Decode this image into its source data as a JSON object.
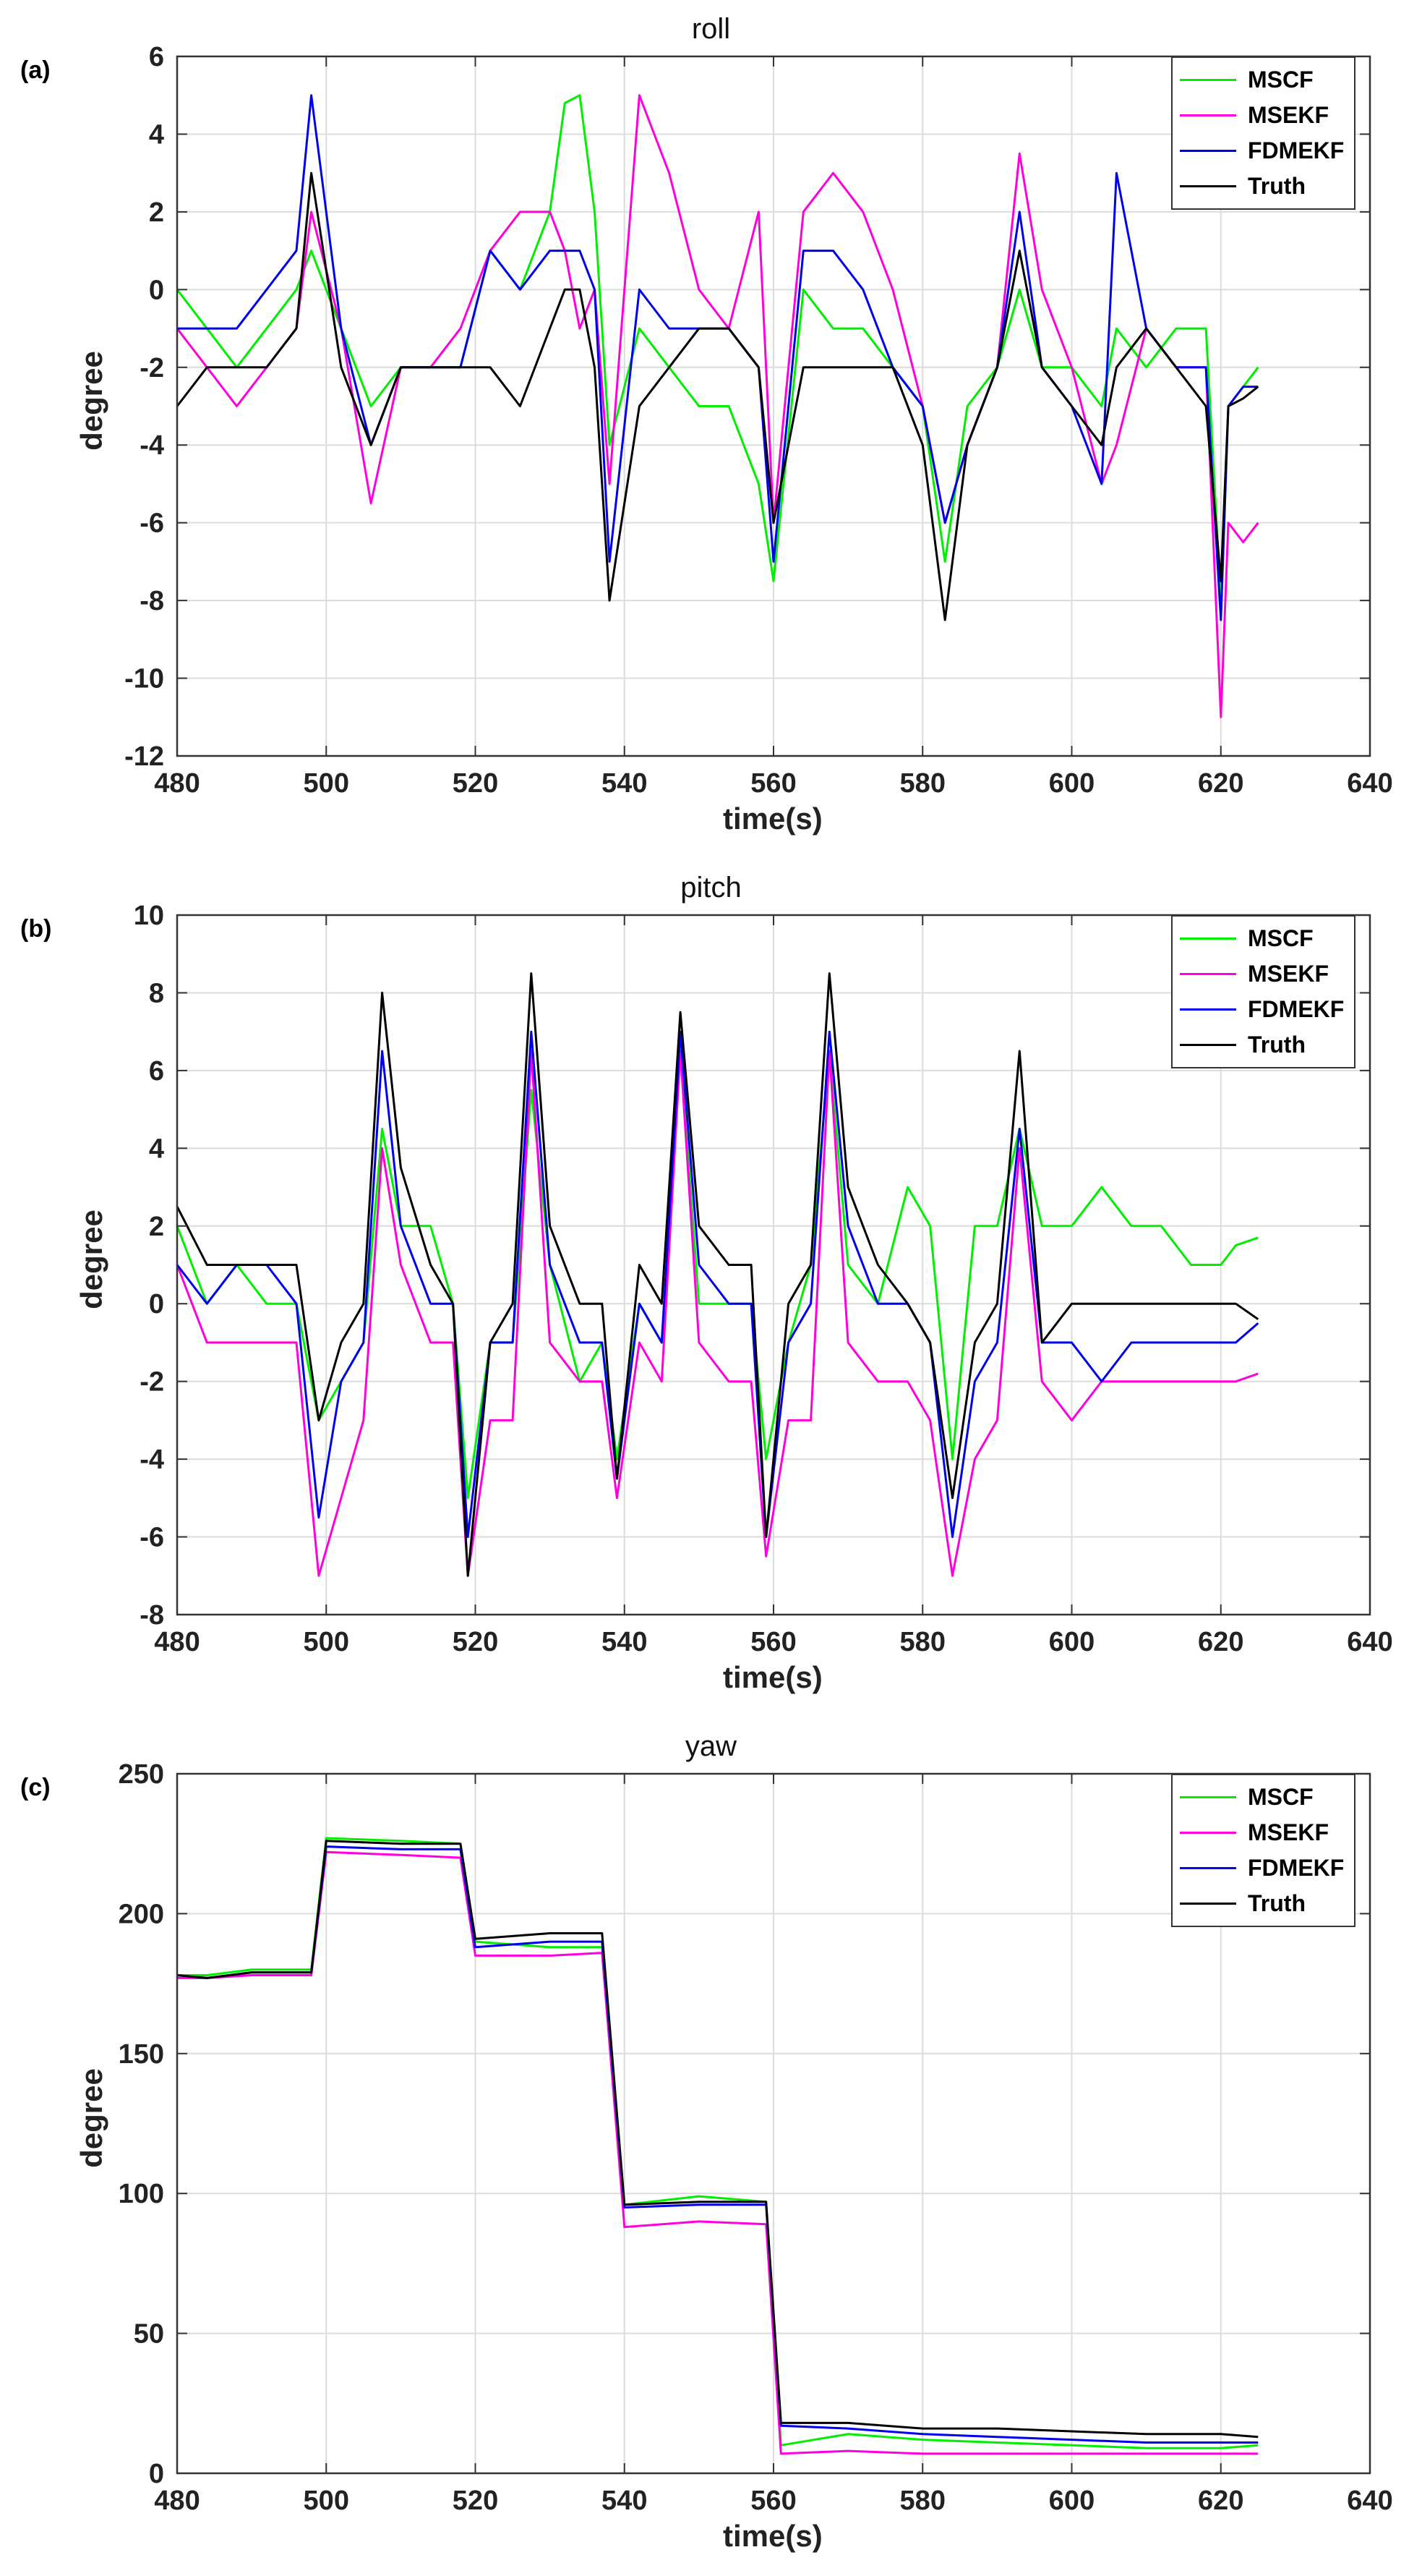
{
  "panel_a": {
    "label": "(a)",
    "chart_data": {
      "type": "line",
      "title": "roll",
      "xlabel": "time(s)",
      "ylabel": "degree",
      "xlim": [
        480,
        640
      ],
      "ylim": [
        -12,
        6
      ],
      "xticks": [
        480,
        500,
        520,
        540,
        560,
        580,
        600,
        620,
        640
      ],
      "yticks": [
        -12,
        -10,
        -8,
        -6,
        -4,
        -2,
        0,
        2,
        4,
        6
      ],
      "grid": true,
      "legend": "top-right",
      "x": [
        480,
        484,
        488,
        492,
        496,
        498,
        502,
        506,
        510,
        514,
        518,
        522,
        526,
        530,
        532,
        534,
        536,
        538,
        542,
        546,
        550,
        554,
        558,
        560,
        564,
        568,
        572,
        576,
        580,
        583,
        586,
        590,
        593,
        596,
        600,
        604,
        606,
        610,
        614,
        618,
        620,
        621,
        623,
        625
      ],
      "series": [
        {
          "name": "MSCF",
          "color": "#00ee00",
          "values": [
            0,
            -1,
            -2,
            -1,
            0,
            1,
            -1,
            -3,
            -2,
            -2,
            -2,
            1,
            0,
            2,
            4.8,
            5,
            2,
            -4,
            -1,
            -2,
            -3,
            -3,
            -5,
            -7.5,
            0,
            -1,
            -1,
            -2,
            -3,
            -7,
            -3,
            -2,
            0,
            -2,
            -2,
            -3,
            -1,
            -2,
            -1,
            -1,
            -8,
            -3,
            -2.5,
            -2
          ]
        },
        {
          "name": "MSEKF",
          "color": "#ff00dd",
          "values": [
            -1,
            -2,
            -3,
            -2,
            -1,
            2,
            -1,
            -5.5,
            -2,
            -2,
            -1,
            1,
            2,
            2,
            1,
            -1,
            0,
            -5,
            5,
            3,
            0,
            -1,
            2,
            -6,
            2,
            3,
            2,
            0,
            -3,
            -6,
            -4,
            -2,
            3.5,
            0,
            -2,
            -5,
            -4,
            -1,
            -2,
            -2,
            -11,
            -6,
            -6.5,
            -6
          ]
        },
        {
          "name": "FDMEKF",
          "color": "#0000ee",
          "values": [
            -1,
            -1,
            -1,
            0,
            1,
            5,
            -1,
            -4,
            -2,
            -2,
            -2,
            1,
            0,
            1,
            1,
            1,
            0,
            -7,
            0,
            -1,
            -1,
            -1,
            -2,
            -7,
            1,
            1,
            0,
            -2,
            -3,
            -6,
            -4,
            -2,
            2,
            -2,
            -3,
            -5,
            3,
            -1,
            -2,
            -2,
            -8.5,
            -3,
            -2.5,
            -2.5
          ]
        },
        {
          "name": "Truth",
          "color": "#000000",
          "values": [
            -3,
            -2,
            -2,
            -2,
            -1,
            3,
            -2,
            -4,
            -2,
            -2,
            -2,
            -2,
            -3,
            -1,
            0,
            0,
            -2,
            -8,
            -3,
            -2,
            -1,
            -1,
            -2,
            -6,
            -2,
            -2,
            -2,
            -2,
            -4,
            -8.5,
            -4,
            -2,
            1,
            -2,
            -3,
            -4,
            -2,
            -1,
            -2,
            -3,
            -7.5,
            -3,
            -2.8,
            -2.5
          ]
        }
      ]
    }
  },
  "panel_b": {
    "label": "(b)",
    "chart_data": {
      "type": "line",
      "title": "pitch",
      "xlabel": "time(s)",
      "ylabel": "degree",
      "xlim": [
        480,
        640
      ],
      "ylim": [
        -8,
        10
      ],
      "xticks": [
        480,
        500,
        520,
        540,
        560,
        580,
        600,
        620,
        640
      ],
      "yticks": [
        -8,
        -6,
        -4,
        -2,
        0,
        2,
        4,
        6,
        8,
        10
      ],
      "grid": true,
      "legend": "top-right",
      "x": [
        480,
        484,
        488,
        492,
        496,
        499,
        502,
        505,
        507.5,
        510,
        514,
        517,
        519,
        522,
        525,
        527.5,
        530,
        534,
        537,
        539,
        542,
        545,
        547.5,
        550,
        554,
        557,
        559,
        562,
        565,
        567.5,
        570,
        574,
        578,
        581,
        584,
        587,
        590,
        593,
        596,
        600,
        604,
        608,
        612,
        616,
        620,
        622,
        625
      ],
      "series": [
        {
          "name": "MSCF",
          "color": "#00ee00",
          "values": [
            2,
            0,
            1,
            0,
            0,
            -3,
            -2,
            -1,
            4.5,
            2,
            2,
            0,
            -5,
            -1,
            -1,
            5.5,
            1,
            -2,
            -1,
            -4,
            0,
            -1,
            6.5,
            0,
            0,
            0,
            -4,
            -1,
            1,
            6.5,
            1,
            0,
            3,
            2,
            -4,
            2,
            2,
            4.5,
            2,
            2,
            3,
            2,
            2,
            1,
            1,
            1.5,
            1.7
          ]
        },
        {
          "name": "MSEKF",
          "color": "#ff00dd",
          "values": [
            1,
            -1,
            -1,
            -1,
            -1,
            -7,
            -5,
            -3,
            4,
            1,
            -1,
            -1,
            -7,
            -3,
            -3,
            6.5,
            -1,
            -2,
            -2,
            -5,
            -1,
            -2,
            6.5,
            -1,
            -2,
            -2,
            -6.5,
            -3,
            -3,
            6.5,
            -1,
            -2,
            -2,
            -3,
            -7,
            -4,
            -3,
            4,
            -2,
            -3,
            -2,
            -2,
            -2,
            -2,
            -2,
            -2,
            -1.8
          ]
        },
        {
          "name": "FDMEKF",
          "color": "#0000ee",
          "values": [
            1,
            0,
            1,
            1,
            0,
            -5.5,
            -2,
            -1,
            6.5,
            2,
            0,
            0,
            -6,
            -1,
            -1,
            7,
            1,
            -1,
            -1,
            -4.5,
            0,
            -1,
            7,
            1,
            0,
            0,
            -6,
            -1,
            0,
            7,
            2,
            0,
            0,
            -1,
            -6,
            -2,
            -1,
            4.5,
            -1,
            -1,
            -2,
            -1,
            -1,
            -1,
            -1,
            -1,
            -0.5
          ]
        },
        {
          "name": "Truth",
          "color": "#000000",
          "values": [
            2.5,
            1,
            1,
            1,
            1,
            -3,
            -1,
            0,
            8,
            3.5,
            1,
            0,
            -7,
            -1,
            0,
            8.5,
            2,
            0,
            0,
            -4.5,
            1,
            0,
            7.5,
            2,
            1,
            1,
            -6,
            0,
            1,
            8.5,
            3,
            1,
            0,
            -1,
            -5,
            -1,
            0,
            6.5,
            -1,
            0,
            0,
            0,
            0,
            0,
            0,
            0,
            -0.4
          ]
        }
      ]
    }
  },
  "panel_c": {
    "label": "(c)",
    "chart_data": {
      "type": "line",
      "title": "yaw",
      "xlabel": "time(s)",
      "ylabel": "degree",
      "xlim": [
        480,
        640
      ],
      "ylim": [
        0,
        250
      ],
      "xticks": [
        480,
        500,
        520,
        540,
        560,
        580,
        600,
        620,
        640
      ],
      "yticks": [
        0,
        50,
        100,
        150,
        200,
        250
      ],
      "grid": true,
      "legend": "top-right",
      "x": [
        480,
        484,
        490,
        498,
        500,
        510,
        518,
        520,
        530,
        537,
        540,
        550,
        559,
        561,
        570,
        580,
        590,
        600,
        610,
        620,
        625
      ],
      "series": [
        {
          "name": "MSCF",
          "color": "#00ee00",
          "values": [
            178,
            178,
            180,
            180,
            227,
            226,
            225,
            190,
            188,
            188,
            96,
            99,
            97,
            10,
            14,
            12,
            11,
            10,
            9,
            9,
            10
          ]
        },
        {
          "name": "MSEKF",
          "color": "#ff00dd",
          "values": [
            177,
            177,
            178,
            178,
            222,
            221,
            220,
            185,
            185,
            186,
            88,
            90,
            89,
            7,
            8,
            7,
            7,
            7,
            7,
            7,
            7
          ]
        },
        {
          "name": "FDMEKF",
          "color": "#0000ee",
          "values": [
            178,
            177,
            179,
            179,
            224,
            223,
            223,
            188,
            190,
            190,
            95,
            96,
            96,
            17,
            16,
            14,
            13,
            12,
            11,
            11,
            11
          ]
        },
        {
          "name": "Truth",
          "color": "#000000",
          "values": [
            178,
            177,
            179,
            179,
            226,
            225,
            225,
            191,
            193,
            193,
            96,
            97,
            97,
            18,
            18,
            16,
            16,
            15,
            14,
            14,
            13
          ]
        }
      ]
    }
  }
}
